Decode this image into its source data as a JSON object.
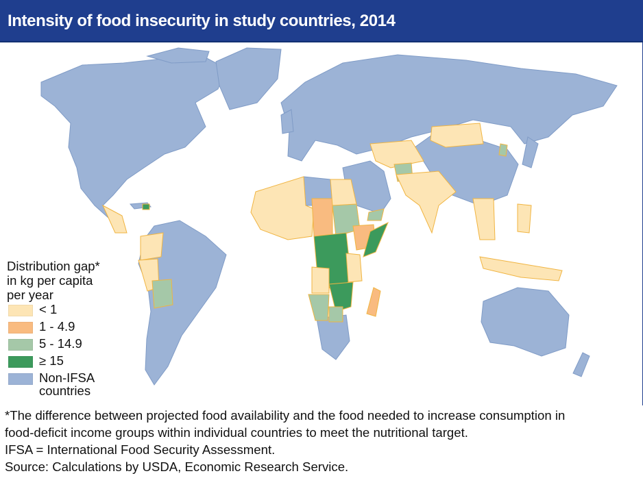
{
  "title": "Intensity of food insecurity in study countries, 2014",
  "colors": {
    "header_bg": "#1f3e8e",
    "ocean": "#ffffff",
    "non_ifsa": "#9cb3d6",
    "lt1": "#fde5b5",
    "r1_4_9": "#f9bb80",
    "r5_14_9": "#a5c8a8",
    "gte15": "#3c9a5c",
    "study_border": "#f0b441"
  },
  "legend": {
    "title": "Distribution gap*\nin kg per capita\nper year",
    "items": [
      {
        "label": "< 1",
        "color": "#fde5b5"
      },
      {
        "label": "1 - 4.9",
        "color": "#f9bb80"
      },
      {
        "label": "5 - 14.9",
        "color": "#a5c8a8"
      },
      {
        "label": "≥ 15",
        "color": "#3c9a5c"
      },
      {
        "label": "Non-IFSA\ncountries",
        "color": "#9cb3d6"
      }
    ]
  },
  "notes": [
    "*The difference between projected food availability and the food needed to increase consumption in",
    "food-deficit income groups within individual countries to meet the nutritional target.",
    "IFSA = International Food Security Assessment.",
    "Source: Calculations by USDA, Economic Research Service."
  ]
}
